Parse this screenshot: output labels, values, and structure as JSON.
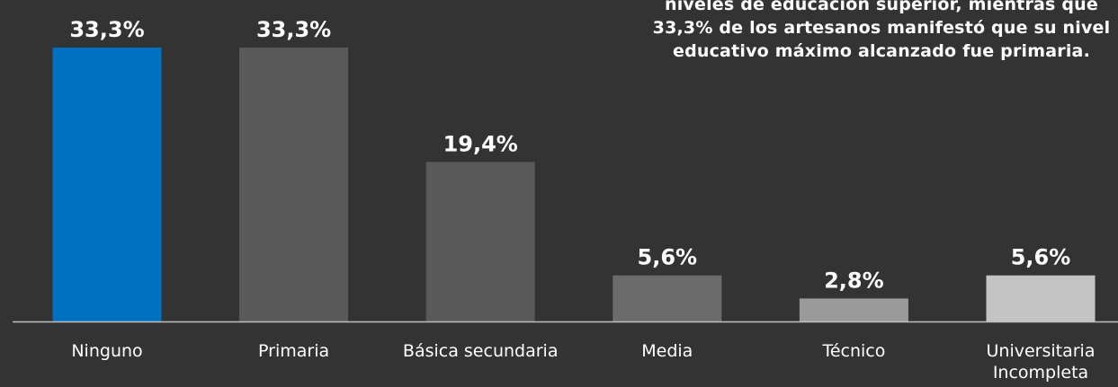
{
  "chart_data": {
    "type": "bar",
    "categories": [
      "Ninguno",
      "Primaria",
      "Básica secundaria",
      "Media",
      "Técnico",
      "Universitaria Incompleta"
    ],
    "category_lines": [
      [
        "Ninguno"
      ],
      [
        "Primaria"
      ],
      [
        "Básica secundaria"
      ],
      [
        "Media"
      ],
      [
        "Técnico"
      ],
      [
        "Universitaria",
        "Incompleta"
      ]
    ],
    "values": [
      33.3,
      33.3,
      19.4,
      5.6,
      2.8,
      5.6
    ],
    "value_labels": [
      "33,3%",
      "33,3%",
      "19,4%",
      "5,6%",
      "2,8%",
      "5,6%"
    ],
    "bar_colors": [
      "#0070C0",
      "#595959",
      "#595959",
      "#6B6B6B",
      "#9A9A9A",
      "#C4C4C4"
    ],
    "ylim": [
      0,
      33.3
    ],
    "grid": false,
    "legend": "none"
  },
  "annotation": {
    "lines": [
      "niveles de educación superior, mientras que",
      "33,3% de los artesanos manifestó que su nivel",
      "educativo máximo alcanzado fue primaria."
    ]
  },
  "colors": {
    "background": "#333333",
    "text": "#FFFFFF",
    "axis": "#BFBFBF"
  }
}
